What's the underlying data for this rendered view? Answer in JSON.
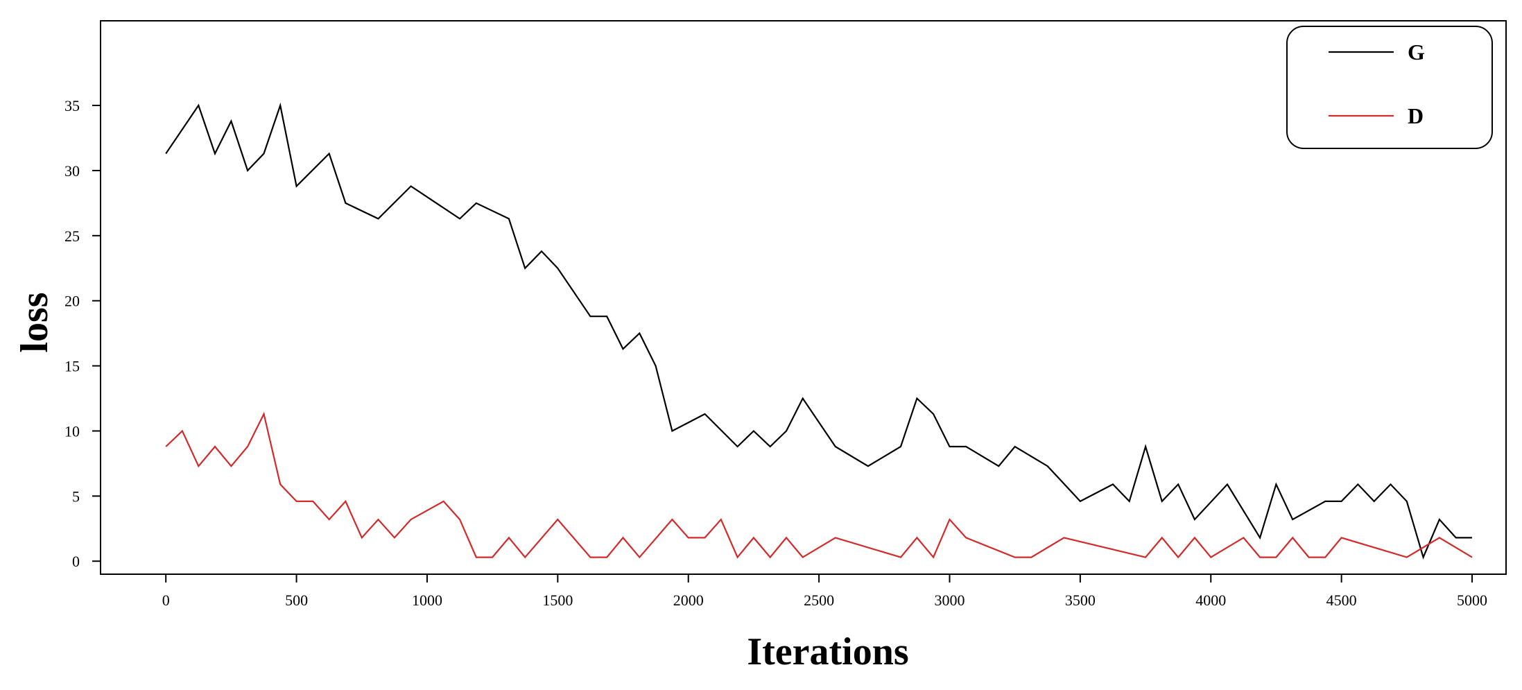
{
  "chart_data": {
    "type": "line",
    "title": "",
    "xlabel": "Iterations",
    "ylabel": "loss",
    "xlim": [
      -250,
      5130
    ],
    "ylim": [
      -1,
      41.5
    ],
    "grid": false,
    "legend_position": "top-right",
    "x_ticks": [
      0,
      500,
      1000,
      1500,
      2000,
      2500,
      3000,
      3500,
      4000,
      4500,
      5000
    ],
    "x_tick_labels": [
      "0",
      "500",
      "1000",
      "1500",
      "2000",
      "2500",
      "3000",
      "3500",
      "4000",
      "4500",
      "5000"
    ],
    "y_ticks": [
      0,
      5,
      10,
      15,
      20,
      25,
      30,
      35
    ],
    "y_tick_labels": [
      "0",
      "5",
      "10",
      "15",
      "20",
      "25",
      "30",
      "35"
    ],
    "series": [
      {
        "name": "G",
        "color": "#000000",
        "points": [
          [
            0,
            31.3
          ],
          [
            125,
            35
          ],
          [
            188,
            31.3
          ],
          [
            250,
            33.8
          ],
          [
            313,
            30
          ],
          [
            375,
            31.3
          ],
          [
            438,
            35
          ],
          [
            500,
            28.8
          ],
          [
            625,
            31.3
          ],
          [
            688,
            27.5
          ],
          [
            813,
            26.3
          ],
          [
            938,
            28.8
          ],
          [
            1125,
            26.3
          ],
          [
            1188,
            27.5
          ],
          [
            1313,
            26.3
          ],
          [
            1375,
            22.5
          ],
          [
            1438,
            23.8
          ],
          [
            1500,
            22.5
          ],
          [
            1625,
            18.8
          ],
          [
            1688,
            18.8
          ],
          [
            1750,
            16.3
          ],
          [
            1813,
            17.5
          ],
          [
            1875,
            15
          ],
          [
            1938,
            10
          ],
          [
            2063,
            11.3
          ],
          [
            2188,
            8.8
          ],
          [
            2250,
            10
          ],
          [
            2313,
            8.8
          ],
          [
            2375,
            10
          ],
          [
            2438,
            12.5
          ],
          [
            2563,
            8.8
          ],
          [
            2688,
            7.3
          ],
          [
            2813,
            8.8
          ],
          [
            2875,
            12.5
          ],
          [
            2938,
            11.3
          ],
          [
            3000,
            8.8
          ],
          [
            3063,
            8.8
          ],
          [
            3188,
            7.3
          ],
          [
            3250,
            8.8
          ],
          [
            3375,
            7.3
          ],
          [
            3500,
            4.6
          ],
          [
            3625,
            5.9
          ],
          [
            3688,
            4.6
          ],
          [
            3750,
            8.8
          ],
          [
            3813,
            4.6
          ],
          [
            3875,
            5.9
          ],
          [
            3938,
            3.2
          ],
          [
            4063,
            5.9
          ],
          [
            4188,
            1.8
          ],
          [
            4250,
            5.9
          ],
          [
            4313,
            3.2
          ],
          [
            4438,
            4.6
          ],
          [
            4500,
            4.6
          ],
          [
            4563,
            5.9
          ],
          [
            4625,
            4.6
          ],
          [
            4688,
            5.9
          ],
          [
            4750,
            4.6
          ],
          [
            4813,
            0.3
          ],
          [
            4875,
            3.2
          ],
          [
            4938,
            1.8
          ],
          [
            5000,
            1.8
          ]
        ]
      },
      {
        "name": "D",
        "color": "#d42a2a",
        "points": [
          [
            0,
            8.8
          ],
          [
            63,
            10
          ],
          [
            125,
            7.3
          ],
          [
            188,
            8.8
          ],
          [
            250,
            7.3
          ],
          [
            313,
            8.8
          ],
          [
            375,
            11.3
          ],
          [
            438,
            5.9
          ],
          [
            500,
            4.6
          ],
          [
            563,
            4.6
          ],
          [
            625,
            3.2
          ],
          [
            688,
            4.6
          ],
          [
            750,
            1.8
          ],
          [
            813,
            3.2
          ],
          [
            875,
            1.8
          ],
          [
            938,
            3.2
          ],
          [
            1063,
            4.6
          ],
          [
            1125,
            3.2
          ],
          [
            1188,
            0.3
          ],
          [
            1250,
            0.3
          ],
          [
            1313,
            1.8
          ],
          [
            1375,
            0.3
          ],
          [
            1500,
            3.2
          ],
          [
            1625,
            0.3
          ],
          [
            1688,
            0.3
          ],
          [
            1750,
            1.8
          ],
          [
            1813,
            0.3
          ],
          [
            1938,
            3.2
          ],
          [
            2000,
            1.8
          ],
          [
            2063,
            1.8
          ],
          [
            2125,
            3.2
          ],
          [
            2188,
            0.3
          ],
          [
            2250,
            1.8
          ],
          [
            2313,
            0.3
          ],
          [
            2375,
            1.8
          ],
          [
            2438,
            0.3
          ],
          [
            2563,
            1.8
          ],
          [
            2813,
            0.3
          ],
          [
            2875,
            1.8
          ],
          [
            2938,
            0.3
          ],
          [
            3000,
            3.2
          ],
          [
            3063,
            1.8
          ],
          [
            3250,
            0.3
          ],
          [
            3313,
            0.3
          ],
          [
            3438,
            1.8
          ],
          [
            3750,
            0.3
          ],
          [
            3813,
            1.8
          ],
          [
            3875,
            0.3
          ],
          [
            3938,
            1.8
          ],
          [
            4000,
            0.3
          ],
          [
            4125,
            1.8
          ],
          [
            4188,
            0.3
          ],
          [
            4250,
            0.3
          ],
          [
            4313,
            1.8
          ],
          [
            4375,
            0.3
          ],
          [
            4438,
            0.3
          ],
          [
            4500,
            1.8
          ],
          [
            4750,
            0.3
          ],
          [
            4875,
            1.8
          ],
          [
            5000,
            0.3
          ]
        ]
      }
    ]
  }
}
